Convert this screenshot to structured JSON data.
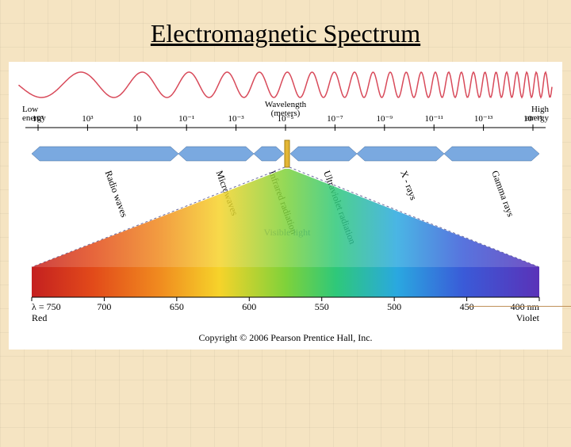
{
  "title": "Electromagnetic Spectrum",
  "background": "#f5e4c2",
  "panel_bg": "#ffffff",
  "wave_color": "#d84a5a",
  "axis_label": "Wavelength\n(meters)",
  "left_label": "Low\nenergy",
  "right_label": "High\nenergy",
  "ticks": [
    "10⁵",
    "10³",
    "10",
    "10⁻¹",
    "10⁻³",
    "10⁻⁵",
    "10⁻⁷",
    "10⁻⁹",
    "10⁻¹¹",
    "10⁻¹³",
    "10⁻¹⁵"
  ],
  "bands": [
    "Radio waves",
    "Microwaves",
    "Infrared radiation",
    "Ultraviolet radiation",
    "X - rays",
    "Gamma rays"
  ],
  "bar_color": "#7aa9e0",
  "bar_split_color": "#456a99",
  "visible_center_color": "#e3b635",
  "visible_label": "Visible light",
  "cone_line_color": "#6b6b9e",
  "v_ticks": [
    "λ = 750",
    "700",
    "650",
    "600",
    "550",
    "500",
    "450",
    "400 nm"
  ],
  "v_end_left": "Red",
  "v_end_right": "Violet",
  "v_stops": [
    {
      "pct": 0,
      "color": "#c42020"
    },
    {
      "pct": 12,
      "color": "#e24a1a"
    },
    {
      "pct": 25,
      "color": "#f08a1f"
    },
    {
      "pct": 37,
      "color": "#f6d32a"
    },
    {
      "pct": 50,
      "color": "#7fd23a"
    },
    {
      "pct": 60,
      "color": "#2ec87a"
    },
    {
      "pct": 72,
      "color": "#2aa8e0"
    },
    {
      "pct": 85,
      "color": "#3a5bd8"
    },
    {
      "pct": 100,
      "color": "#5a32b8"
    }
  ],
  "copyright": "Copyright © 2006 Pearson Prentice Hall, Inc.",
  "title_fontsize": 32,
  "tick_fontsize": 11,
  "accent_color": "#c0925a"
}
